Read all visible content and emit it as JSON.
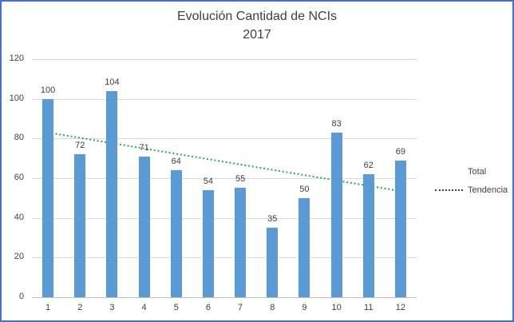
{
  "window": {
    "border_color": "#4472C4",
    "background_color": "#FFFFFF"
  },
  "chart_data": {
    "type": "bar",
    "title": "Evolución Cantidad de NCIs",
    "subtitle": "2017",
    "categories": [
      "1",
      "2",
      "3",
      "4",
      "5",
      "6",
      "7",
      "8",
      "9",
      "10",
      "11",
      "12"
    ],
    "series": [
      {
        "name": "Total",
        "type": "bar",
        "color": "#5B9BD5",
        "values": [
          100,
          72,
          104,
          71,
          64,
          54,
          55,
          35,
          50,
          83,
          62,
          69
        ]
      },
      {
        "name": "Tendencia",
        "type": "trendline",
        "color": "#2DA84F",
        "line_style": "dotted",
        "start_value": 83,
        "end_value": 53.5
      }
    ],
    "xlabel": "",
    "ylabel": "",
    "ylim": [
      0,
      120
    ],
    "yticks": [
      0,
      20,
      40,
      60,
      80,
      100,
      120
    ],
    "grid": true,
    "gridline_color": "#D9D9D9",
    "data_labels": true,
    "legend_position": "right"
  }
}
